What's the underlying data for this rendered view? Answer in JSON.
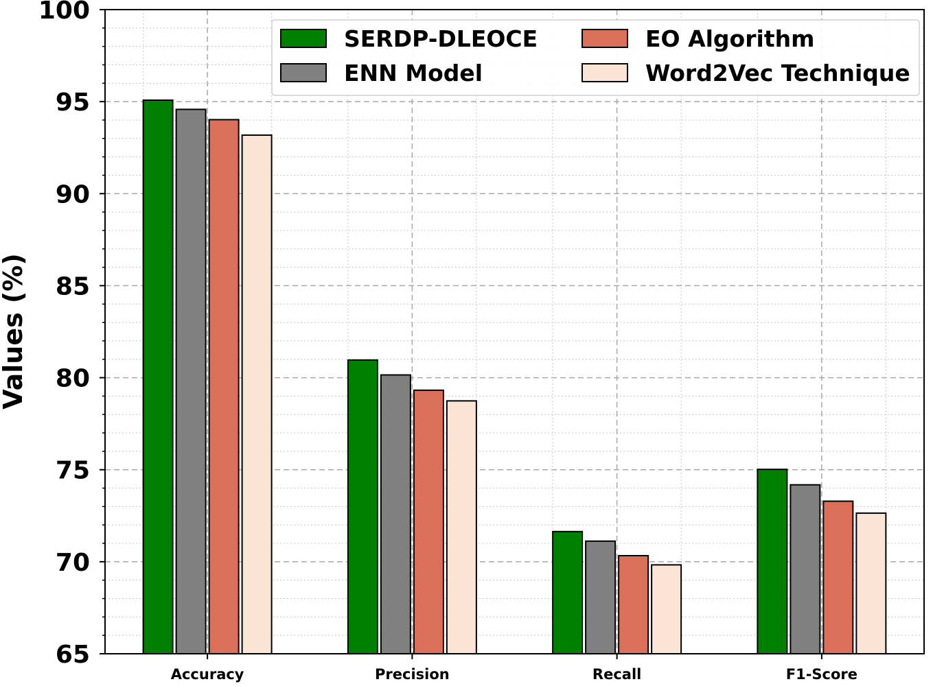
{
  "chart_data": {
    "type": "bar",
    "title": "",
    "xlabel": "",
    "ylabel": "Values (%)",
    "categories": [
      "Accuracy",
      "Precision",
      "Recall",
      "F1-Score"
    ],
    "series": [
      {
        "name": "SERDP-DLEOCE",
        "color": "#008000",
        "values": [
          95.08,
          80.96,
          71.64,
          75.02
        ]
      },
      {
        "name": "ENN Model",
        "color": "#808080",
        "values": [
          94.58,
          80.15,
          71.12,
          74.18
        ]
      },
      {
        "name": "EO Algorithm",
        "color": "#DB705A",
        "values": [
          94.02,
          79.32,
          70.33,
          73.29
        ]
      },
      {
        "name": "Word2Vec Technique",
        "color": "#F9E4D6",
        "values": [
          93.18,
          78.74,
          69.83,
          72.64
        ]
      }
    ],
    "ylim": [
      65,
      100
    ],
    "yticks": [
      65,
      70,
      75,
      80,
      85,
      90,
      95,
      100
    ],
    "grid": true,
    "legend": {
      "location": "top-right",
      "columns": 2
    }
  }
}
